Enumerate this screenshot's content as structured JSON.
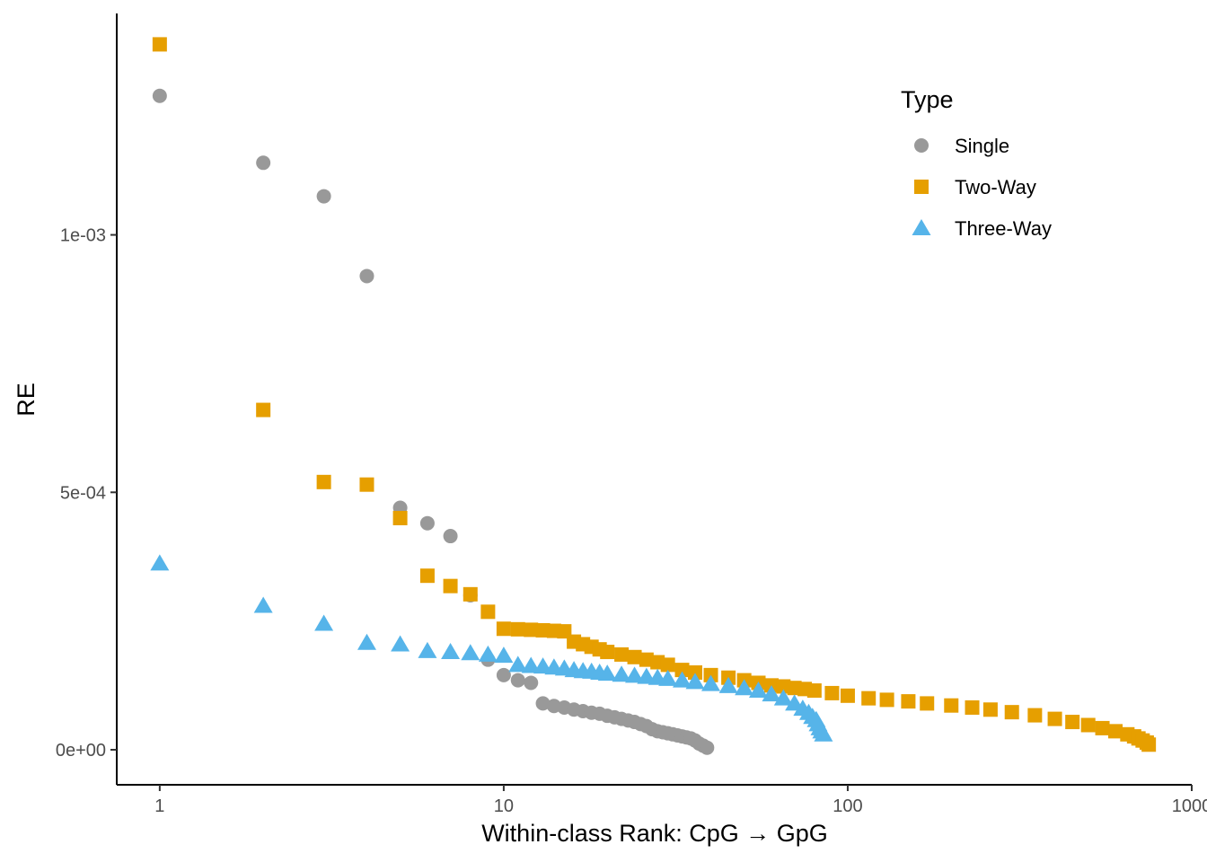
{
  "chart_data": {
    "type": "scatter",
    "title": "",
    "xlabel": "Within-class Rank: CpG → GpG",
    "ylabel": "RE",
    "x_scale": "log10",
    "xlim": [
      0.75,
      1000
    ],
    "ylim": [
      -6.8e-05,
      0.00143
    ],
    "x_ticks": [
      1,
      10,
      100,
      1000
    ],
    "x_tick_labels": [
      "1",
      "10",
      "100",
      "1000"
    ],
    "y_ticks": [
      0,
      0.0005,
      0.001
    ],
    "y_tick_labels": [
      "0e+00",
      "5e-04",
      "1e-03"
    ],
    "grid": false,
    "legend": {
      "title": "Type",
      "position": "top-right"
    },
    "series": [
      {
        "name": "Single",
        "shape": "circle",
        "color": "#999999",
        "x": [
          1,
          2,
          3,
          4,
          5,
          6,
          7,
          8,
          9,
          10,
          11,
          12,
          13,
          14,
          15,
          16,
          17,
          18,
          19,
          20,
          21,
          22,
          23,
          24,
          25,
          26,
          27,
          28,
          29,
          30,
          31,
          32,
          33,
          34,
          35,
          36,
          37,
          38,
          39
        ],
        "y": [
          0.00127,
          0.00114,
          0.001075,
          0.00092,
          0.00047,
          0.00044,
          0.000415,
          0.0003,
          0.000175,
          0.000145,
          0.000135,
          0.00013,
          9e-05,
          8.5e-05,
          8.2e-05,
          7.8e-05,
          7.5e-05,
          7.2e-05,
          7e-05,
          6.6e-05,
          6.3e-05,
          6e-05,
          5.7e-05,
          5.4e-05,
          5e-05,
          4.6e-05,
          4e-05,
          3.6e-05,
          3.4e-05,
          3.2e-05,
          3e-05,
          2.8e-05,
          2.6e-05,
          2.4e-05,
          2.2e-05,
          1.8e-05,
          1.2e-05,
          8e-06,
          4e-06
        ]
      },
      {
        "name": "Two-Way",
        "shape": "square",
        "color": "#E69F00",
        "x": [
          1,
          2,
          3,
          4,
          5,
          6,
          7,
          8,
          9,
          10,
          11,
          12,
          13,
          14,
          15,
          16,
          17,
          18,
          19,
          20,
          22,
          24,
          26,
          28,
          30,
          33,
          36,
          40,
          45,
          50,
          55,
          60,
          65,
          70,
          75,
          80,
          90,
          100,
          115,
          130,
          150,
          170,
          200,
          230,
          260,
          300,
          350,
          400,
          450,
          500,
          550,
          600,
          650,
          680,
          700,
          720,
          740,
          750
        ],
        "y": [
          0.00137,
          0.00066,
          0.00052,
          0.000515,
          0.00045,
          0.000338,
          0.000318,
          0.000302,
          0.000268,
          0.000235,
          0.000234,
          0.000233,
          0.000232,
          0.000231,
          0.00023,
          0.00021,
          0.000205,
          0.0002,
          0.000195,
          0.00019,
          0.000185,
          0.00018,
          0.000175,
          0.00017,
          0.000165,
          0.000155,
          0.00015,
          0.000145,
          0.00014,
          0.000135,
          0.00013,
          0.000125,
          0.000123,
          0.00012,
          0.000118,
          0.000115,
          0.00011,
          0.000105,
          0.0001,
          9.7e-05,
          9.4e-05,
          9e-05,
          8.6e-05,
          8.2e-05,
          7.8e-05,
          7.3e-05,
          6.7e-05,
          6e-05,
          5.4e-05,
          4.8e-05,
          4.2e-05,
          3.6e-05,
          3e-05,
          2.6e-05,
          2.2e-05,
          1.8e-05,
          1.4e-05,
          1e-05
        ]
      },
      {
        "name": "Three-Way",
        "shape": "triangle",
        "color": "#56B4E9",
        "x": [
          1,
          2,
          3,
          4,
          5,
          6,
          7,
          8,
          9,
          10,
          11,
          12,
          13,
          14,
          15,
          16,
          17,
          18,
          19,
          20,
          22,
          24,
          26,
          28,
          30,
          33,
          36,
          40,
          45,
          50,
          55,
          60,
          65,
          70,
          74,
          77,
          79,
          81,
          82,
          83,
          84,
          85
        ],
        "y": [
          0.000362,
          0.00028,
          0.000245,
          0.000208,
          0.000205,
          0.000192,
          0.00019,
          0.000188,
          0.000185,
          0.000183,
          0.000165,
          0.000163,
          0.000162,
          0.00016,
          0.000158,
          0.000155,
          0.000153,
          0.000152,
          0.00015,
          0.000148,
          0.000146,
          0.000144,
          0.000142,
          0.00014,
          0.000138,
          0.000135,
          0.000132,
          0.000128,
          0.000124,
          0.00012,
          0.000115,
          0.000108,
          0.0001,
          9e-05,
          8e-05,
          7.2e-05,
          6.4e-05,
          5.8e-05,
          5e-05,
          4.2e-05,
          3.6e-05,
          3e-05
        ]
      }
    ]
  }
}
